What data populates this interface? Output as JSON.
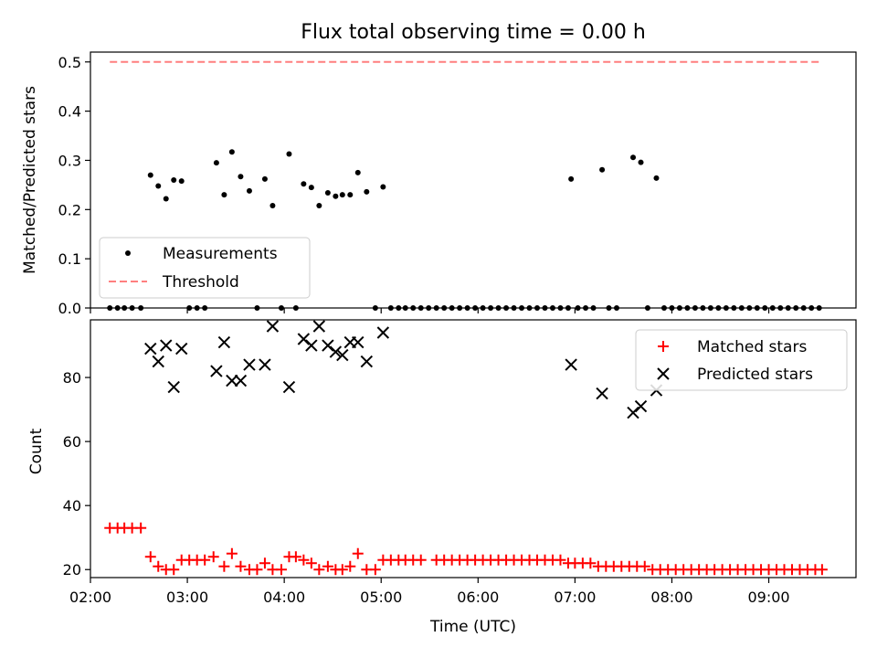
{
  "figure": {
    "title": "Flux total observing time = 0.00 h"
  },
  "chart_data": [
    {
      "type": "scatter",
      "ylabel": "Matched/Predicted stars",
      "xlim": [
        2.0,
        9.9
      ],
      "ylim": [
        0.0,
        0.52
      ],
      "yticks": [
        0.0,
        0.1,
        0.2,
        0.3,
        0.4,
        0.5
      ],
      "grid": false,
      "legend_position": "lower-left",
      "series": [
        {
          "name": "Measurements",
          "marker": "dot",
          "color": "#000000",
          "points": [
            [
              2.2,
              0
            ],
            [
              2.28,
              0
            ],
            [
              2.35,
              0
            ],
            [
              2.43,
              0
            ],
            [
              2.52,
              0
            ],
            [
              2.62,
              0.27
            ],
            [
              2.7,
              0.248
            ],
            [
              2.78,
              0.222
            ],
            [
              2.86,
              0.26
            ],
            [
              2.94,
              0.258
            ],
            [
              3.02,
              0
            ],
            [
              3.1,
              0
            ],
            [
              3.18,
              0
            ],
            [
              3.3,
              0.295
            ],
            [
              3.38,
              0.23
            ],
            [
              3.46,
              0.317
            ],
            [
              3.55,
              0.267
            ],
            [
              3.64,
              0.238
            ],
            [
              3.72,
              0
            ],
            [
              3.8,
              0.262
            ],
            [
              3.88,
              0.208
            ],
            [
              3.97,
              0
            ],
            [
              4.05,
              0.313
            ],
            [
              4.12,
              0
            ],
            [
              4.2,
              0.252
            ],
            [
              4.28,
              0.245
            ],
            [
              4.36,
              0.208
            ],
            [
              4.45,
              0.234
            ],
            [
              4.53,
              0.227
            ],
            [
              4.6,
              0.23
            ],
            [
              4.68,
              0.23
            ],
            [
              4.76,
              0.275
            ],
            [
              4.85,
              0.236
            ],
            [
              4.94,
              0
            ],
            [
              5.02,
              0.246
            ],
            [
              5.1,
              0
            ],
            [
              5.18,
              0
            ],
            [
              5.25,
              0
            ],
            [
              5.33,
              0
            ],
            [
              5.41,
              0
            ],
            [
              5.49,
              0
            ],
            [
              5.57,
              0
            ],
            [
              5.65,
              0
            ],
            [
              5.73,
              0
            ],
            [
              5.81,
              0
            ],
            [
              5.89,
              0
            ],
            [
              5.97,
              0
            ],
            [
              6.05,
              0
            ],
            [
              6.13,
              0
            ],
            [
              6.21,
              0
            ],
            [
              6.29,
              0
            ],
            [
              6.37,
              0
            ],
            [
              6.45,
              0
            ],
            [
              6.53,
              0
            ],
            [
              6.61,
              0
            ],
            [
              6.69,
              0
            ],
            [
              6.77,
              0
            ],
            [
              6.85,
              0
            ],
            [
              6.93,
              0
            ],
            [
              6.96,
              0.262
            ],
            [
              7.03,
              0
            ],
            [
              7.11,
              0
            ],
            [
              7.19,
              0
            ],
            [
              7.28,
              0.281
            ],
            [
              7.35,
              0
            ],
            [
              7.43,
              0
            ],
            [
              7.6,
              0.306
            ],
            [
              7.68,
              0.296
            ],
            [
              7.75,
              0
            ],
            [
              7.84,
              0.264
            ],
            [
              7.92,
              0
            ],
            [
              8.0,
              0
            ],
            [
              8.08,
              0
            ],
            [
              8.16,
              0
            ],
            [
              8.24,
              0
            ],
            [
              8.32,
              0
            ],
            [
              8.4,
              0
            ],
            [
              8.48,
              0
            ],
            [
              8.56,
              0
            ],
            [
              8.64,
              0
            ],
            [
              8.72,
              0
            ],
            [
              8.8,
              0
            ],
            [
              8.88,
              0
            ],
            [
              8.96,
              0
            ],
            [
              9.04,
              0
            ],
            [
              9.12,
              0
            ],
            [
              9.2,
              0
            ],
            [
              9.28,
              0
            ],
            [
              9.36,
              0
            ],
            [
              9.44,
              0
            ],
            [
              9.52,
              0
            ]
          ]
        },
        {
          "name": "Threshold",
          "marker": "dashed-line",
          "color": "#ff7f7f",
          "points": [
            [
              2.2,
              0.5
            ],
            [
              9.52,
              0.5
            ]
          ]
        }
      ]
    },
    {
      "type": "scatter",
      "xlabel": "Time (UTC)",
      "ylabel": "Count",
      "xlim": [
        2.0,
        9.9
      ],
      "ylim": [
        17.5,
        98.0
      ],
      "yticks": [
        20,
        40,
        60,
        80
      ],
      "xticks": [
        2,
        3,
        4,
        5,
        6,
        7,
        8,
        9
      ],
      "xtick_labels": [
        "02:00",
        "03:00",
        "04:00",
        "05:00",
        "06:00",
        "07:00",
        "08:00",
        "09:00"
      ],
      "grid": false,
      "legend_position": "upper-right",
      "series": [
        {
          "name": "Matched stars",
          "marker": "plus",
          "color": "#ff0000",
          "points": [
            [
              2.2,
              33
            ],
            [
              2.28,
              33
            ],
            [
              2.35,
              33
            ],
            [
              2.43,
              33
            ],
            [
              2.52,
              33
            ],
            [
              2.62,
              24
            ],
            [
              2.7,
              21
            ],
            [
              2.78,
              20
            ],
            [
              2.86,
              20
            ],
            [
              2.94,
              23
            ],
            [
              3.02,
              23
            ],
            [
              3.1,
              23
            ],
            [
              3.18,
              23
            ],
            [
              3.27,
              24
            ],
            [
              3.38,
              21
            ],
            [
              3.46,
              25
            ],
            [
              3.55,
              21
            ],
            [
              3.64,
              20
            ],
            [
              3.72,
              20
            ],
            [
              3.8,
              22
            ],
            [
              3.88,
              20
            ],
            [
              3.97,
              20
            ],
            [
              4.05,
              24
            ],
            [
              4.12,
              24
            ],
            [
              4.2,
              23
            ],
            [
              4.28,
              22
            ],
            [
              4.36,
              20
            ],
            [
              4.45,
              21
            ],
            [
              4.53,
              20
            ],
            [
              4.6,
              20
            ],
            [
              4.68,
              21
            ],
            [
              4.76,
              25
            ],
            [
              4.85,
              20
            ],
            [
              4.94,
              20
            ],
            [
              5.02,
              23
            ],
            [
              5.1,
              23
            ],
            [
              5.18,
              23
            ],
            [
              5.25,
              23
            ],
            [
              5.33,
              23
            ],
            [
              5.41,
              23
            ],
            [
              5.57,
              23
            ],
            [
              5.65,
              23
            ],
            [
              5.73,
              23
            ],
            [
              5.81,
              23
            ],
            [
              5.89,
              23
            ],
            [
              5.97,
              23
            ],
            [
              6.05,
              23
            ],
            [
              6.13,
              23
            ],
            [
              6.21,
              23
            ],
            [
              6.29,
              23
            ],
            [
              6.37,
              23
            ],
            [
              6.45,
              23
            ],
            [
              6.53,
              23
            ],
            [
              6.61,
              23
            ],
            [
              6.69,
              23
            ],
            [
              6.77,
              23
            ],
            [
              6.85,
              23
            ],
            [
              6.93,
              22
            ],
            [
              7.0,
              22
            ],
            [
              7.08,
              22
            ],
            [
              7.16,
              22
            ],
            [
              7.24,
              21
            ],
            [
              7.32,
              21
            ],
            [
              7.4,
              21
            ],
            [
              7.48,
              21
            ],
            [
              7.56,
              21
            ],
            [
              7.64,
              21
            ],
            [
              7.72,
              21
            ],
            [
              7.8,
              20
            ],
            [
              7.88,
              20
            ],
            [
              7.96,
              20
            ],
            [
              8.04,
              20
            ],
            [
              8.12,
              20
            ],
            [
              8.2,
              20
            ],
            [
              8.28,
              20
            ],
            [
              8.36,
              20
            ],
            [
              8.44,
              20
            ],
            [
              8.52,
              20
            ],
            [
              8.6,
              20
            ],
            [
              8.68,
              20
            ],
            [
              8.76,
              20
            ],
            [
              8.84,
              20
            ],
            [
              8.92,
              20
            ],
            [
              9.0,
              20
            ],
            [
              9.08,
              20
            ],
            [
              9.16,
              20
            ],
            [
              9.24,
              20
            ],
            [
              9.32,
              20
            ],
            [
              9.4,
              20
            ],
            [
              9.48,
              20
            ],
            [
              9.55,
              20
            ]
          ]
        },
        {
          "name": "Predicted stars",
          "marker": "x",
          "color": "#000000",
          "points": [
            [
              2.62,
              89
            ],
            [
              2.7,
              85
            ],
            [
              2.78,
              90
            ],
            [
              2.86,
              77
            ],
            [
              2.94,
              89
            ],
            [
              3.3,
              82
            ],
            [
              3.38,
              91
            ],
            [
              3.46,
              79
            ],
            [
              3.55,
              79
            ],
            [
              3.64,
              84
            ],
            [
              3.8,
              84
            ],
            [
              3.88,
              96
            ],
            [
              4.05,
              77
            ],
            [
              4.2,
              92
            ],
            [
              4.28,
              90
            ],
            [
              4.36,
              96
            ],
            [
              4.45,
              90
            ],
            [
              4.53,
              88
            ],
            [
              4.6,
              87
            ],
            [
              4.68,
              91
            ],
            [
              4.76,
              91
            ],
            [
              4.85,
              85
            ],
            [
              5.02,
              94
            ],
            [
              6.96,
              84
            ],
            [
              7.28,
              75
            ],
            [
              7.6,
              69
            ],
            [
              7.68,
              71
            ],
            [
              7.84,
              76
            ]
          ]
        }
      ]
    }
  ]
}
